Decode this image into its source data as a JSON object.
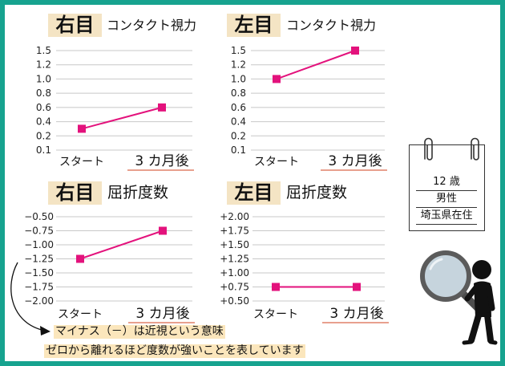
{
  "frame": {
    "border_color": "#17a38f"
  },
  "colors": {
    "series_line": "#e3127c",
    "badge_bg": "#f4e4c4",
    "note_highlight": "#fbe6bc",
    "category_underline": "#e8a08e",
    "grid": "#c8c8c8"
  },
  "icons": {
    "magnifier": "magnifying-glass-icon",
    "person": "person-silhouette-icon",
    "clip": "paperclip-icon",
    "arrow": "curved-arrow-icon"
  },
  "chart_data": [
    {
      "type": "line",
      "badge": "右目",
      "title": "コンタクト視力",
      "categories": [
        "スタート",
        "3 カ月後"
      ],
      "values": [
        0.3,
        0.6
      ],
      "y_ticks": [
        1.5,
        1.2,
        1.0,
        0.8,
        0.6,
        0.4,
        0.2,
        0.1
      ],
      "y_tick_labels": [
        "1.5",
        "1.2",
        "1.0",
        "0.8",
        "0.6",
        "0.4",
        "0.2",
        "0.1"
      ],
      "ylim": [
        0.1,
        1.5
      ],
      "y_scale": "ordinal",
      "grid": true
    },
    {
      "type": "line",
      "badge": "左目",
      "title": "コンタクト視力",
      "categories": [
        "スタート",
        "3 カ月後"
      ],
      "values": [
        1.0,
        1.5
      ],
      "y_ticks": [
        1.5,
        1.2,
        1.0,
        0.8,
        0.6,
        0.4,
        0.2,
        0.1
      ],
      "y_tick_labels": [
        "1.5",
        "1.2",
        "1.0",
        "0.8",
        "0.6",
        "0.4",
        "0.2",
        "0.1"
      ],
      "ylim": [
        0.1,
        1.5
      ],
      "y_scale": "ordinal",
      "grid": true
    },
    {
      "type": "line",
      "badge": "右目",
      "title": "屈折度数",
      "categories": [
        "スタート",
        "3 カ月後"
      ],
      "values": [
        -1.25,
        -0.75
      ],
      "y_ticks": [
        -0.5,
        -0.75,
        -1.0,
        -1.25,
        -1.5,
        -1.75,
        -2.0
      ],
      "y_tick_labels": [
        "−0.50",
        "−0.75",
        "−1.00",
        "−1.25",
        "−1.50",
        "−1.75",
        "−2.00"
      ],
      "ylim": [
        -2.0,
        -0.5
      ],
      "grid": true
    },
    {
      "type": "line",
      "badge": "左目",
      "title": "屈折度数",
      "categories": [
        "スタート",
        "3 カ月後"
      ],
      "values": [
        0.75,
        0.75
      ],
      "y_ticks": [
        2.0,
        1.75,
        1.5,
        1.25,
        1.0,
        0.75,
        0.5
      ],
      "y_tick_labels": [
        "+2.00",
        "+1.75",
        "+1.50",
        "+1.25",
        "+1.00",
        "+0.75",
        "+0.50"
      ],
      "ylim": [
        0.5,
        2.0
      ],
      "grid": true
    }
  ],
  "profile_card": {
    "age": "12 歳",
    "sex": "男性",
    "residence": "埼玉県在住"
  },
  "note": {
    "line1": "マイナス（－）は近視という意味",
    "line2": "ゼロから離れるほど度数が強いことを表しています"
  }
}
